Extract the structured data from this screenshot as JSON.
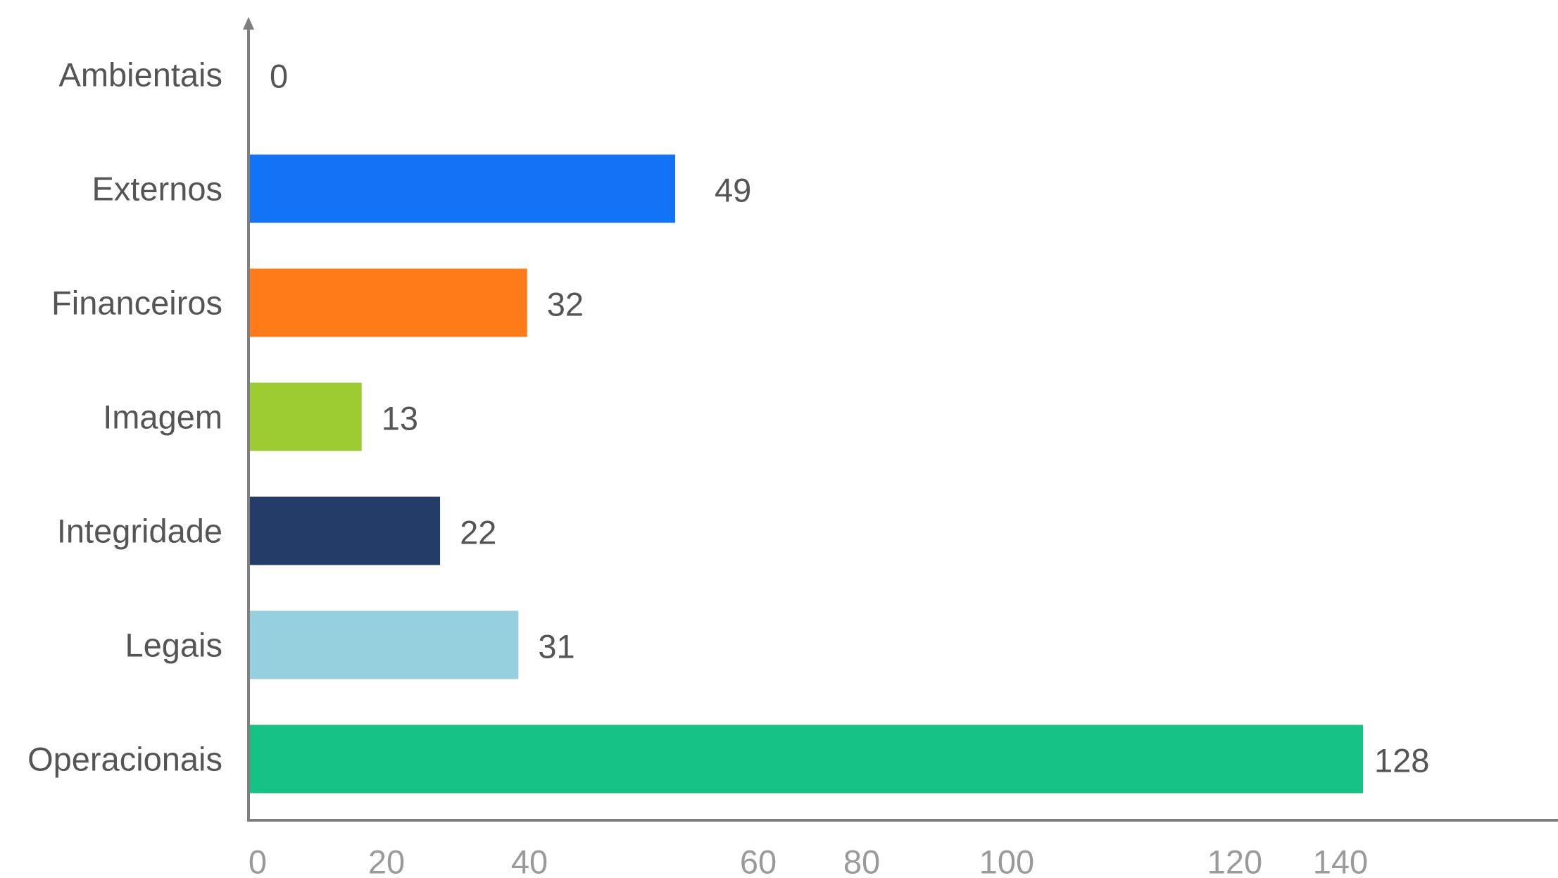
{
  "chart_data": {
    "type": "bar",
    "orientation": "horizontal",
    "title": "",
    "xlabel": "",
    "ylabel": "",
    "categories": [
      "Ambientais",
      "Externos",
      "Financeiros",
      "Imagem",
      "Integridade",
      "Legais",
      "Operacionais"
    ],
    "values": [
      0,
      49,
      32,
      13,
      22,
      31,
      128
    ],
    "colors": [
      "#ffffff",
      "#1273f7",
      "#ff7a19",
      "#9ccb32",
      "#233d68",
      "#96d0de",
      "#16c286"
    ],
    "value_labels": [
      "0",
      "49",
      "32",
      "13",
      "22",
      "31",
      "128"
    ],
    "x_ticks": [
      "0",
      "20",
      "40",
      "60",
      "80",
      "100",
      "120",
      "140"
    ],
    "xlim": [
      0,
      179
    ],
    "grid": false,
    "legend": "none",
    "axis_color": "#7f7f7f"
  }
}
